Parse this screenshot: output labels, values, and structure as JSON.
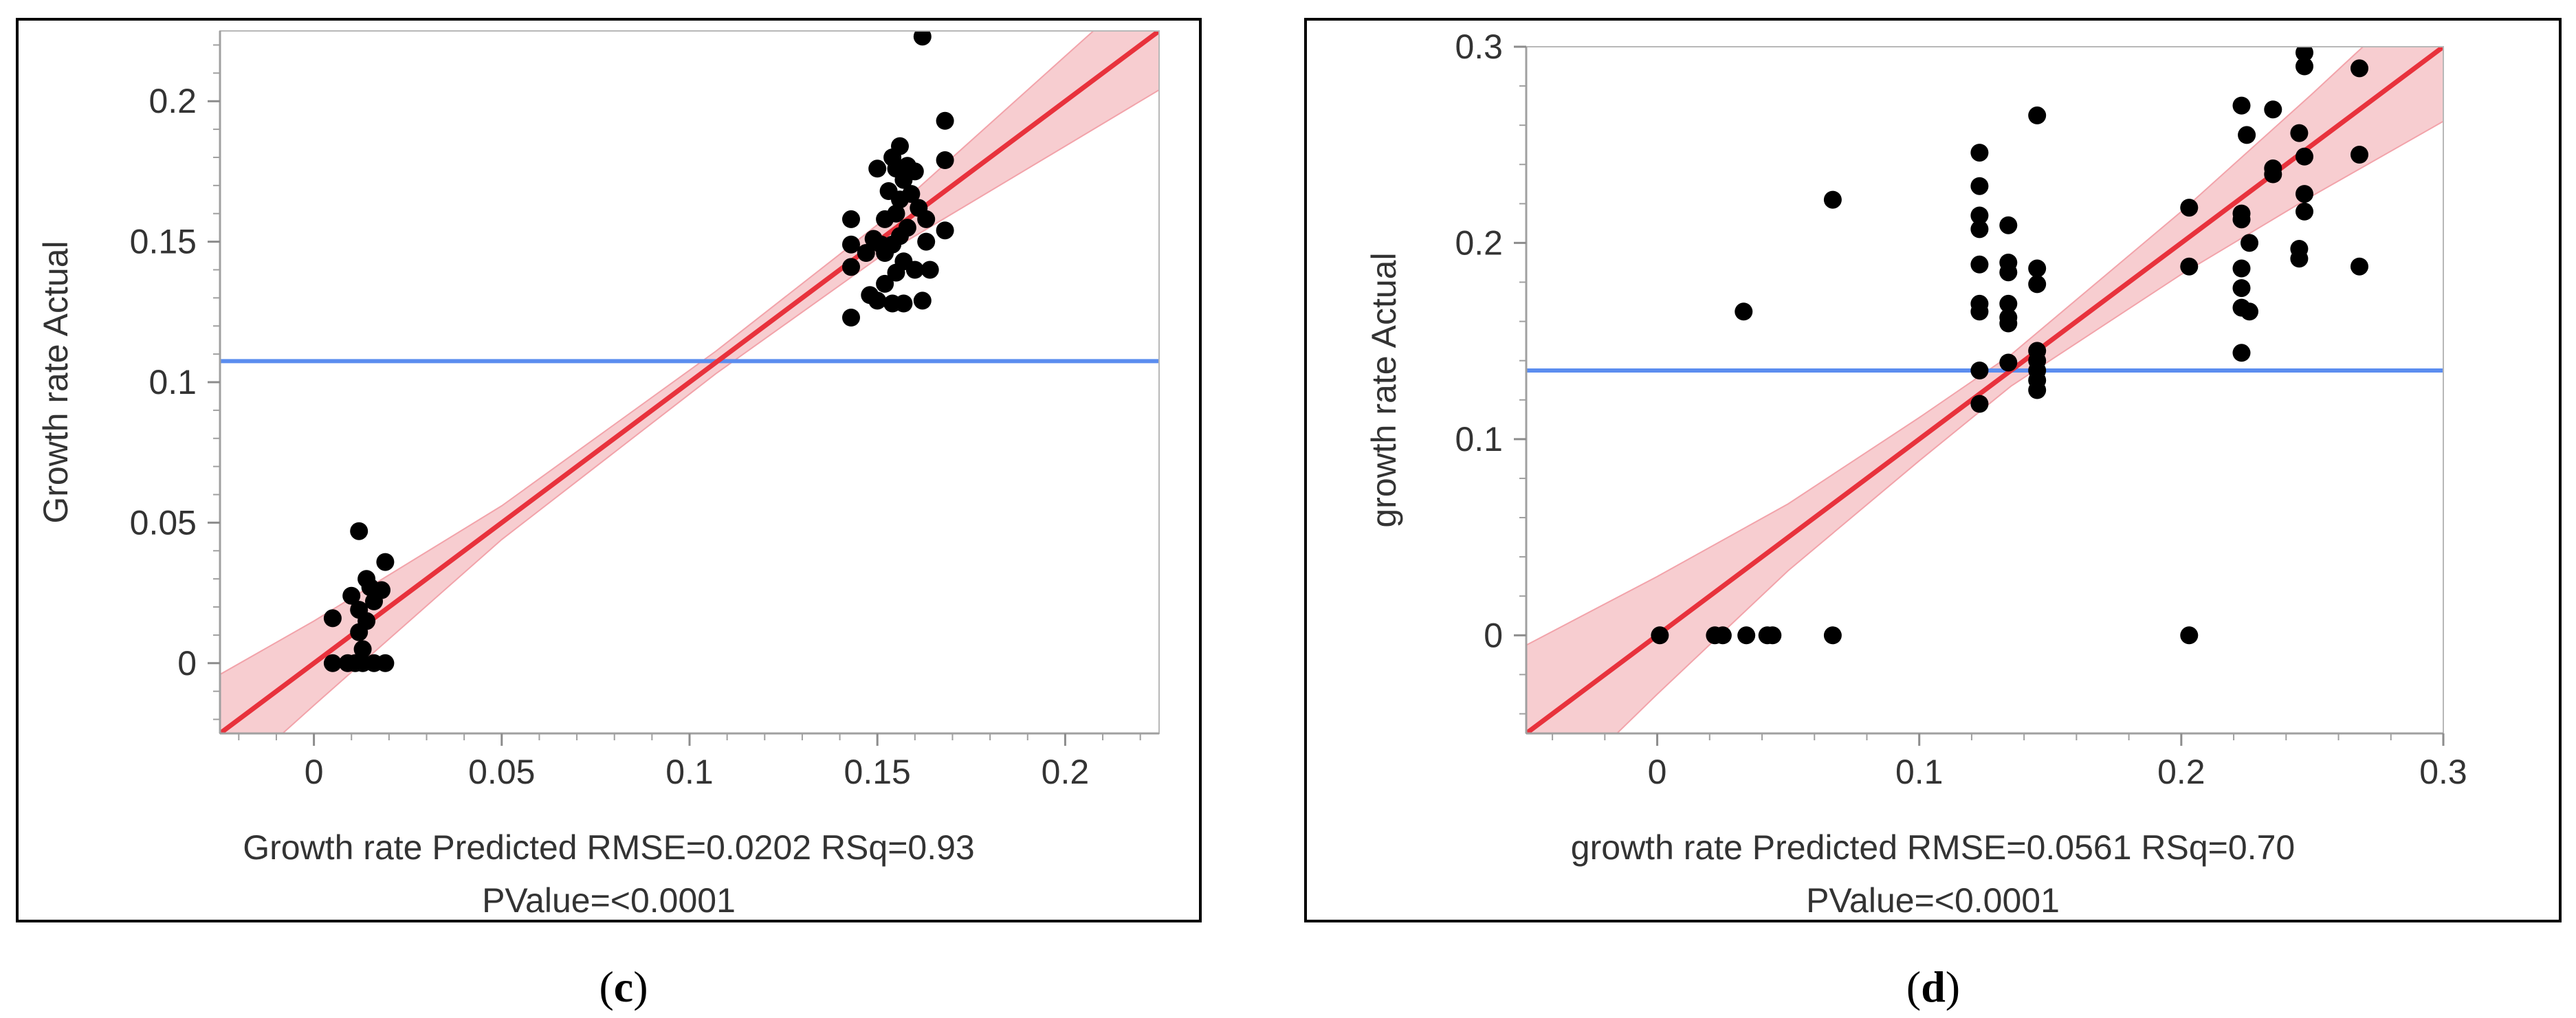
{
  "chart_data": [
    {
      "type": "scatter",
      "caption_letter": "c",
      "xlabel": "Growth rate Predicted RMSE=0.0202 RSq=0.93",
      "ylabel": "Growth rate Actual",
      "pvalue": "PValue=<0.0001",
      "xlim": [
        -0.025,
        0.225
      ],
      "ylim": [
        -0.025,
        0.225
      ],
      "xticks": [
        0,
        0.05,
        0.1,
        0.15,
        0.2
      ],
      "xtick_labels": [
        "0",
        "0.05",
        "0.1",
        "0.15",
        "0.2"
      ],
      "yticks": [
        0,
        0.05,
        0.1,
        0.15,
        0.2
      ],
      "ytick_labels": [
        "0",
        "0.05",
        "0.1",
        "0.15",
        "0.2"
      ],
      "grid": false,
      "mean_line": 0.1075,
      "fit_line": {
        "slope": 1.0,
        "intercept": 0.0
      },
      "confidence_band": [
        {
          "x": -0.025,
          "lo": -0.045,
          "hi": -0.004
        },
        {
          "x": 0.0,
          "lo": -0.015,
          "hi": 0.015
        },
        {
          "x": 0.05,
          "lo": 0.044,
          "hi": 0.056
        },
        {
          "x": 0.107,
          "lo": 0.103,
          "hi": 0.111
        },
        {
          "x": 0.15,
          "lo": 0.144,
          "hi": 0.156
        },
        {
          "x": 0.2,
          "lo": 0.184,
          "hi": 0.216
        },
        {
          "x": 0.225,
          "lo": 0.204,
          "hi": 0.246
        }
      ],
      "colors": {
        "points": "#000000",
        "fit": "#e8323c",
        "band": "#f6c4c8",
        "mean": "#5b8def"
      },
      "points": [
        [
          0.005,
          0.0
        ],
        [
          0.005,
          0.016
        ],
        [
          0.009,
          0.0
        ],
        [
          0.01,
          0.024
        ],
        [
          0.011,
          0.0
        ],
        [
          0.012,
          0.011
        ],
        [
          0.012,
          0.019
        ],
        [
          0.012,
          0.047
        ],
        [
          0.013,
          0.005
        ],
        [
          0.013,
          0.0
        ],
        [
          0.014,
          0.015
        ],
        [
          0.015,
          0.027
        ],
        [
          0.016,
          0.0
        ],
        [
          0.016,
          0.022
        ],
        [
          0.018,
          0.026
        ],
        [
          0.019,
          0.036
        ],
        [
          0.019,
          0.0
        ],
        [
          0.014,
          0.03
        ],
        [
          0.143,
          0.123
        ],
        [
          0.143,
          0.141
        ],
        [
          0.143,
          0.149
        ],
        [
          0.143,
          0.158
        ],
        [
          0.147,
          0.146
        ],
        [
          0.148,
          0.131
        ],
        [
          0.149,
          0.151
        ],
        [
          0.15,
          0.129
        ],
        [
          0.15,
          0.176
        ],
        [
          0.151,
          0.149
        ],
        [
          0.152,
          0.158
        ],
        [
          0.152,
          0.135
        ],
        [
          0.153,
          0.168
        ],
        [
          0.154,
          0.18
        ],
        [
          0.154,
          0.128
        ],
        [
          0.154,
          0.149
        ],
        [
          0.155,
          0.176
        ],
        [
          0.155,
          0.16
        ],
        [
          0.155,
          0.139
        ],
        [
          0.156,
          0.184
        ],
        [
          0.156,
          0.165
        ],
        [
          0.156,
          0.152
        ],
        [
          0.157,
          0.172
        ],
        [
          0.157,
          0.143
        ],
        [
          0.157,
          0.128
        ],
        [
          0.158,
          0.177
        ],
        [
          0.158,
          0.155
        ],
        [
          0.159,
          0.167
        ],
        [
          0.16,
          0.14
        ],
        [
          0.16,
          0.175
        ],
        [
          0.161,
          0.162
        ],
        [
          0.162,
          0.129
        ],
        [
          0.163,
          0.15
        ],
        [
          0.163,
          0.158
        ],
        [
          0.164,
          0.14
        ],
        [
          0.162,
          0.223
        ],
        [
          0.168,
          0.193
        ],
        [
          0.168,
          0.179
        ],
        [
          0.168,
          0.154
        ],
        [
          0.152,
          0.146
        ]
      ]
    },
    {
      "type": "scatter",
      "caption_letter": "d",
      "xlabel": "growth rate Predicted RMSE=0.0561 RSq=0.70",
      "ylabel": "growth rate Actual",
      "pvalue": "PValue=<0.0001",
      "xlim": [
        -0.05,
        0.3
      ],
      "ylim": [
        -0.05,
        0.3
      ],
      "xticks": [
        0,
        0.1,
        0.2,
        0.3
      ],
      "xtick_labels": [
        "0",
        "0.1",
        "0.2",
        "0.3"
      ],
      "yticks": [
        0,
        0.1,
        0.2,
        0.3
      ],
      "ytick_labels": [
        "0",
        "0.1",
        "0.2",
        "0.3"
      ],
      "grid": false,
      "mean_line": 0.135,
      "fit_line": {
        "slope": 1.0,
        "intercept": 0.0
      },
      "confidence_band": [
        {
          "x": -0.05,
          "lo": -0.095,
          "hi": -0.005
        },
        {
          "x": 0.0,
          "lo": -0.03,
          "hi": 0.03
        },
        {
          "x": 0.05,
          "lo": 0.033,
          "hi": 0.067
        },
        {
          "x": 0.1,
          "lo": 0.089,
          "hi": 0.111
        },
        {
          "x": 0.135,
          "lo": 0.127,
          "hi": 0.143
        },
        {
          "x": 0.2,
          "lo": 0.184,
          "hi": 0.216
        },
        {
          "x": 0.25,
          "lo": 0.224,
          "hi": 0.276
        },
        {
          "x": 0.3,
          "lo": 0.262,
          "hi": 0.338
        }
      ],
      "colors": {
        "points": "#000000",
        "fit": "#e8323c",
        "band": "#f6c4c8",
        "mean": "#5b8def"
      },
      "points": [
        [
          0.001,
          0.0
        ],
        [
          0.022,
          0.0
        ],
        [
          0.025,
          0.0
        ],
        [
          0.034,
          0.0
        ],
        [
          0.042,
          0.0
        ],
        [
          0.044,
          0.0
        ],
        [
          0.067,
          0.0
        ],
        [
          0.033,
          0.165
        ],
        [
          0.067,
          0.222
        ],
        [
          0.123,
          0.246
        ],
        [
          0.123,
          0.229
        ],
        [
          0.123,
          0.214
        ],
        [
          0.123,
          0.207
        ],
        [
          0.123,
          0.189
        ],
        [
          0.123,
          0.169
        ],
        [
          0.123,
          0.165
        ],
        [
          0.123,
          0.135
        ],
        [
          0.123,
          0.118
        ],
        [
          0.134,
          0.209
        ],
        [
          0.134,
          0.19
        ],
        [
          0.134,
          0.185
        ],
        [
          0.134,
          0.169
        ],
        [
          0.134,
          0.162
        ],
        [
          0.134,
          0.159
        ],
        [
          0.134,
          0.139
        ],
        [
          0.145,
          0.265
        ],
        [
          0.145,
          0.187
        ],
        [
          0.145,
          0.179
        ],
        [
          0.145,
          0.145
        ],
        [
          0.145,
          0.14
        ],
        [
          0.145,
          0.135
        ],
        [
          0.145,
          0.13
        ],
        [
          0.145,
          0.125
        ],
        [
          0.203,
          0.218
        ],
        [
          0.203,
          0.188
        ],
        [
          0.203,
          0.0
        ],
        [
          0.223,
          0.27
        ],
        [
          0.223,
          0.215
        ],
        [
          0.223,
          0.212
        ],
        [
          0.223,
          0.187
        ],
        [
          0.223,
          0.177
        ],
        [
          0.223,
          0.167
        ],
        [
          0.223,
          0.144
        ],
        [
          0.225,
          0.255
        ],
        [
          0.226,
          0.2
        ],
        [
          0.226,
          0.165
        ],
        [
          0.235,
          0.268
        ],
        [
          0.235,
          0.238
        ],
        [
          0.235,
          0.235
        ],
        [
          0.245,
          0.256
        ],
        [
          0.245,
          0.197
        ],
        [
          0.245,
          0.192
        ],
        [
          0.247,
          0.297
        ],
        [
          0.247,
          0.29
        ],
        [
          0.247,
          0.244
        ],
        [
          0.247,
          0.225
        ],
        [
          0.247,
          0.216
        ],
        [
          0.268,
          0.289
        ],
        [
          0.268,
          0.245
        ],
        [
          0.268,
          0.188
        ]
      ]
    }
  ]
}
